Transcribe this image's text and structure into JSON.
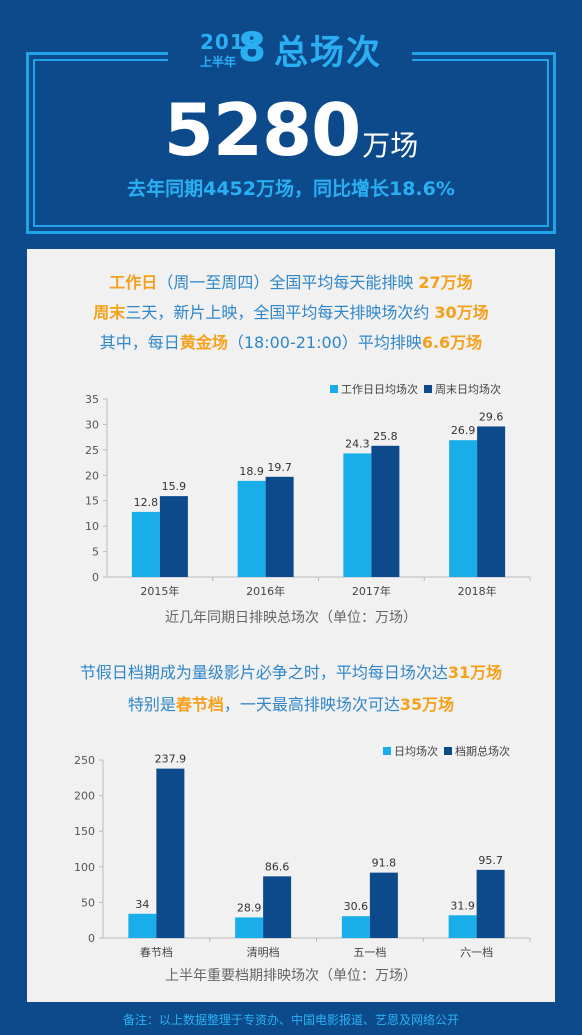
{
  "header": {
    "year": "2018",
    "year_sub": "上半年",
    "year_big8": "8",
    "title": "总场次",
    "big_number": "5280",
    "big_unit": "万场",
    "sub_line": "去年同期4452万场，同比增长18.6%"
  },
  "section1": {
    "line1": {
      "a": "工作日",
      "b": "（周一至周四）全国平均每天能排映 ",
      "c": "27万场"
    },
    "line2": {
      "a": "周末",
      "b": "三天，新片上映，全国平均每天排映场次约 ",
      "c": "30万场"
    },
    "line3": {
      "a": "其中，每日",
      "b": "黄金场",
      "c": "（18:00-21:00）平均排映",
      "d": "6.6万场"
    }
  },
  "section2": {
    "line1": {
      "a": "节假日档期成为量级影片必争之时，平均每日场次达",
      "b": "31万场"
    },
    "line2": {
      "a": "特别是",
      "b": "春节档",
      "c": "，一天最高排映场次可达",
      "d": "35万场"
    }
  },
  "colors": {
    "light": "#19aeea",
    "dark": "#0d4a8c",
    "orange": "#f4a11d",
    "accent": "#2ab0f2"
  },
  "chart_data": [
    {
      "type": "bar",
      "categories": [
        "2015年",
        "2016年",
        "2017年",
        "2018年"
      ],
      "series": [
        {
          "name": "工作日日均场次",
          "values": [
            12.8,
            18.9,
            24.3,
            26.9
          ]
        },
        {
          "name": "周末日均场次",
          "values": [
            15.9,
            19.7,
            25.8,
            29.6
          ]
        }
      ],
      "ylim": [
        0,
        35
      ],
      "yticks": [
        0,
        5,
        10,
        15,
        20,
        25,
        30,
        35
      ],
      "legend": "top-right",
      "caption": "近几年同期日排映总场次（单位：万场）"
    },
    {
      "type": "bar",
      "categories": [
        "春节档",
        "清明档",
        "五一档",
        "六一档"
      ],
      "series": [
        {
          "name": "日均场次",
          "values": [
            34,
            28.9,
            30.6,
            31.9
          ]
        },
        {
          "name": "档期总场次",
          "values": [
            237.9,
            86.6,
            91.8,
            95.7
          ]
        }
      ],
      "ylim": [
        0,
        250
      ],
      "yticks": [
        0,
        50,
        100,
        150,
        200,
        250
      ],
      "legend": "top-right",
      "caption": "上半年重要档期排映场次（单位：万场）"
    }
  ],
  "footnote": "备注：以上数据整理于专资办、中国电影报道、艺恩及网络公开"
}
